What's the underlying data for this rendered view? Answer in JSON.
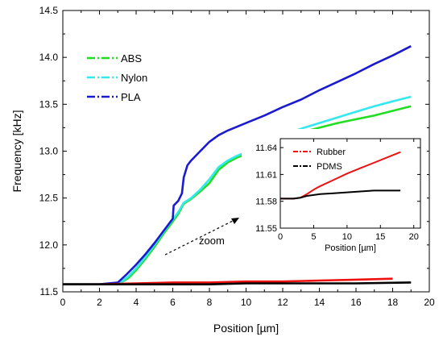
{
  "chart_data": [
    {
      "type": "line",
      "xlabel": "Position [µm]",
      "ylabel": "Frequency [kHz]",
      "xlim": [
        0,
        20
      ],
      "ylim": [
        11.5,
        14.5
      ],
      "xticks": [
        0,
        2,
        4,
        6,
        8,
        10,
        12,
        14,
        16,
        18,
        20
      ],
      "yticks": [
        11.5,
        12.0,
        12.5,
        13.0,
        13.5,
        14.0,
        14.5
      ],
      "grid": false,
      "legend": "top-left",
      "annotation": "zoom",
      "series": [
        {
          "name": "ABS",
          "color": "#22dd22",
          "x": [
            0,
            2.0,
            3.1,
            3.6,
            4.0,
            4.5,
            5.0,
            5.5,
            6.0,
            6.3,
            6.6,
            7.0,
            7.5,
            8.0,
            8.5,
            9.0,
            9.5,
            10.0,
            11.0,
            12.0,
            13.0,
            14.0,
            15.0,
            16.0,
            17.0,
            18.0,
            19.0
          ],
          "y": [
            11.58,
            11.58,
            11.59,
            11.65,
            11.73,
            11.85,
            11.98,
            12.12,
            12.25,
            12.33,
            12.44,
            12.49,
            12.57,
            12.66,
            12.8,
            12.88,
            12.93,
            12.97,
            13.05,
            13.14,
            13.2,
            13.25,
            13.3,
            13.34,
            13.38,
            13.43,
            13.48
          ]
        },
        {
          "name": "Nylon",
          "color": "#33e8ee",
          "x": [
            0,
            2.0,
            3.1,
            3.6,
            4.0,
            4.5,
            5.0,
            5.5,
            6.0,
            6.3,
            6.6,
            7.0,
            7.5,
            8.0,
            8.5,
            9.0,
            9.5,
            10.0,
            11.0,
            12.0,
            13.0,
            14.0,
            15.0,
            16.0,
            17.0,
            18.0,
            19.0
          ],
          "y": [
            11.58,
            11.58,
            11.59,
            11.67,
            11.75,
            11.87,
            12.0,
            12.14,
            12.27,
            12.35,
            12.45,
            12.5,
            12.59,
            12.7,
            12.83,
            12.9,
            12.95,
            12.99,
            13.08,
            13.17,
            13.24,
            13.3,
            13.36,
            13.42,
            13.48,
            13.53,
            13.58
          ]
        },
        {
          "name": "PLA",
          "color": "#1a1ad0",
          "x": [
            0,
            2.0,
            3.0,
            3.5,
            4.0,
            4.5,
            5.0,
            5.5,
            6.0,
            6.05,
            6.3,
            6.5,
            6.6,
            6.8,
            7.0,
            7.5,
            8.0,
            8.5,
            9.0,
            10.0,
            11.0,
            12.0,
            13.0,
            14.0,
            15.0,
            16.0,
            17.0,
            18.0,
            19.0
          ],
          "y": [
            11.58,
            11.58,
            11.6,
            11.69,
            11.79,
            11.9,
            12.02,
            12.15,
            12.28,
            12.42,
            12.47,
            12.55,
            12.72,
            12.85,
            12.9,
            13.0,
            13.1,
            13.17,
            13.22,
            13.3,
            13.38,
            13.47,
            13.55,
            13.65,
            13.74,
            13.83,
            13.93,
            14.02,
            14.12
          ]
        },
        {
          "name": "",
          "color": "#ee1111",
          "x": [
            0,
            2,
            4,
            6,
            8,
            10,
            12,
            14,
            16,
            18
          ],
          "y": [
            11.58,
            11.58,
            11.59,
            11.6,
            11.6,
            11.61,
            11.61,
            11.62,
            11.63,
            11.64
          ]
        },
        {
          "name": "",
          "color": "#000000",
          "x": [
            0,
            2,
            4,
            6,
            8,
            10,
            12,
            14,
            16,
            19
          ],
          "y": [
            11.58,
            11.58,
            11.58,
            11.58,
            11.58,
            11.59,
            11.59,
            11.59,
            11.59,
            11.6
          ]
        }
      ]
    },
    {
      "type": "line",
      "xlabel": "Position [µm]",
      "ylabel": "",
      "xlim": [
        0,
        21
      ],
      "ylim": [
        11.55,
        11.65
      ],
      "xticks": [
        0,
        5,
        10,
        15,
        20
      ],
      "yticks": [
        11.55,
        11.58,
        11.61,
        11.64
      ],
      "ytick_labels": [
        "11.55",
        "11.58",
        "11.61",
        "11.64"
      ],
      "legend": "top-right",
      "series": [
        {
          "name": "Rubber",
          "color": "#ee1111",
          "x": [
            0,
            1,
            2,
            3,
            4,
            5,
            6,
            8,
            10,
            12,
            14,
            16,
            18
          ],
          "y": [
            11.583,
            11.583,
            11.583,
            11.584,
            11.588,
            11.593,
            11.597,
            11.604,
            11.611,
            11.617,
            11.623,
            11.629,
            11.635
          ]
        },
        {
          "name": "PDMS",
          "color": "#000000",
          "x": [
            0,
            2,
            3,
            4,
            5,
            6,
            8,
            10,
            12,
            14,
            16,
            18
          ],
          "y": [
            11.583,
            11.583,
            11.584,
            11.586,
            11.587,
            11.588,
            11.589,
            11.59,
            11.591,
            11.592,
            11.592,
            11.592
          ]
        }
      ]
    }
  ]
}
